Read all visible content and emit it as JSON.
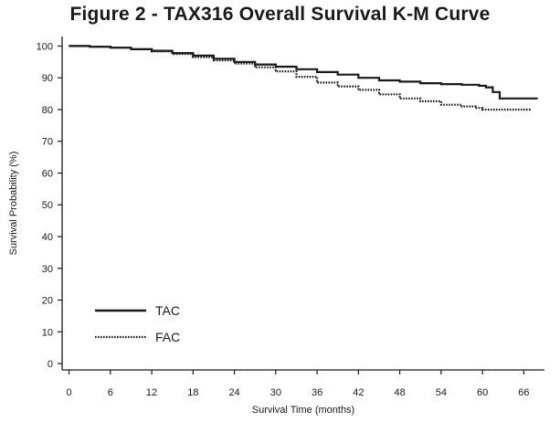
{
  "chart_data": {
    "type": "line",
    "title": "Figure 2 - TAX316 Overall Survival K-M Curve",
    "xlabel": "Survival Time (months)",
    "ylabel": "Survival Probability (%)",
    "xlim": [
      -1,
      69
    ],
    "ylim": [
      -2,
      103
    ],
    "x_ticks": [
      0,
      6,
      12,
      18,
      24,
      30,
      36,
      42,
      48,
      54,
      60,
      66
    ],
    "y_ticks": [
      0,
      10,
      20,
      30,
      40,
      50,
      60,
      70,
      80,
      90,
      100
    ],
    "grid": false,
    "legend_position": "bottom-left",
    "series": [
      {
        "name": "TAC",
        "line_style": "solid",
        "color": "#1a1a1a",
        "x": [
          0,
          3,
          6,
          9,
          12,
          15,
          18,
          21,
          24,
          27,
          30,
          33,
          36,
          39,
          42,
          45,
          48,
          51,
          54,
          57,
          59.5,
          60.5,
          61.5,
          62.5,
          65,
          68
        ],
        "y": [
          100,
          99.8,
          99.5,
          99,
          98.5,
          97.8,
          97,
          96,
          95,
          94.2,
          93.5,
          92.7,
          91.8,
          91,
          90,
          89.2,
          88.8,
          88.3,
          88,
          87.8,
          87.5,
          87,
          85.5,
          83.5,
          83.5,
          83.5
        ]
      },
      {
        "name": "FAC",
        "line_style": "dotted",
        "color": "#1a1a1a",
        "x": [
          0,
          3,
          6,
          9,
          12,
          15,
          18,
          21,
          24,
          27,
          30,
          33,
          36,
          39,
          42,
          45,
          48,
          51,
          54,
          57,
          59,
          60,
          62,
          64,
          66,
          67
        ],
        "y": [
          100,
          99.8,
          99.5,
          99,
          98.3,
          97.5,
          96.5,
          95.5,
          94.5,
          93.3,
          92,
          90.3,
          88.5,
          87.3,
          86.2,
          84.8,
          83.5,
          82.6,
          81.5,
          81,
          80.5,
          80,
          80,
          80,
          80,
          80
        ]
      }
    ]
  }
}
